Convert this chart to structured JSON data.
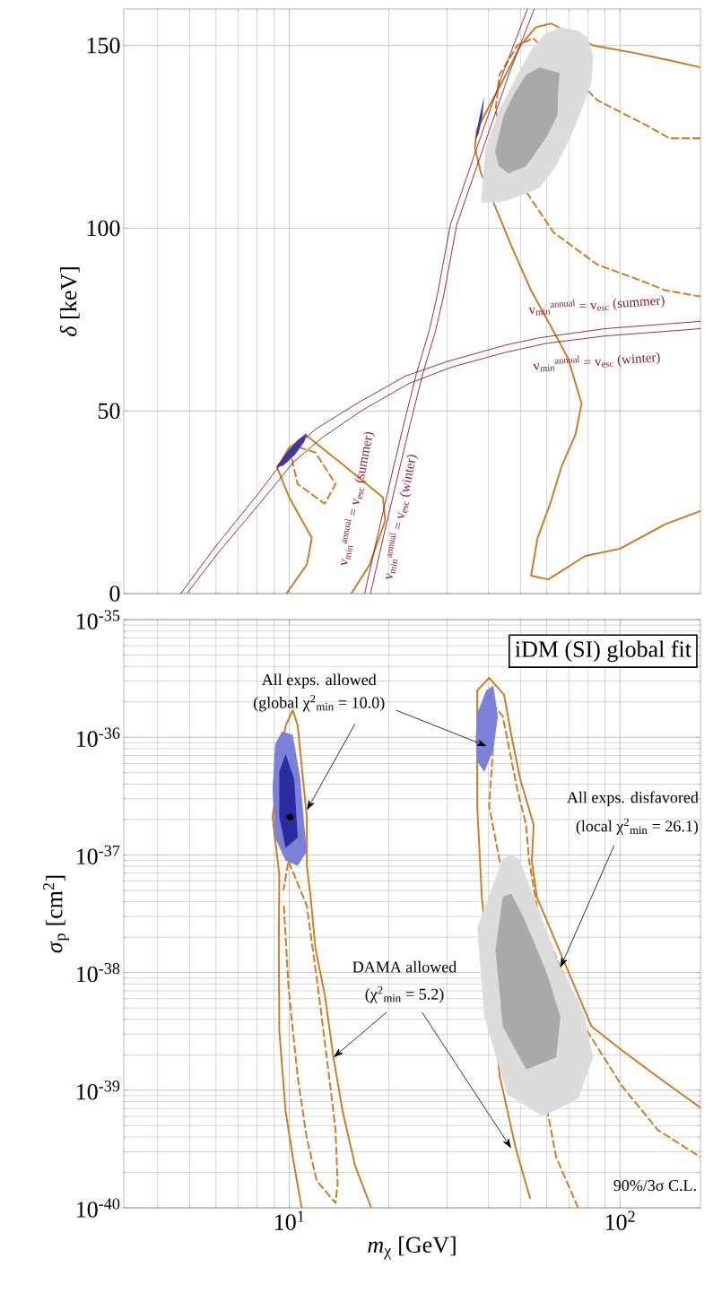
{
  "chart_data": [
    {
      "type": "line",
      "ylabel": "*δ* [keV]",
      "log": "x",
      "grid": true,
      "tick_labels": "y",
      "xlim": [
        3.16,
        175
      ],
      "ylim": [
        0,
        160
      ],
      "yticks": [
        0,
        50,
        100,
        150
      ],
      "series": [
        {
          "color": "#d0781e",
          "line_style": "dashed",
          "x": [
            10,
            10.6,
            12.8,
            13.8,
            12,
            10.3
          ],
          "values": [
            39.8,
            30,
            24.6,
            30,
            38.6,
            40.5
          ]
        },
        {
          "color": "#d0781e",
          "line_style": "dashed",
          "x": [
            175,
            141,
            121,
            85.5,
            54.6,
            48.9,
            43.2,
            42,
            52,
            63,
            85.5,
            113,
            137,
            175
          ],
          "values": [
            124.6,
            124.6,
            128,
            135,
            152,
            150,
            142,
            132,
            110,
            98.8,
            90,
            86,
            83,
            81.3
          ]
        },
        {
          "color": "#d0781e",
          "line_style": "solid",
          "x": [
            175,
            140,
            110,
            83,
            62,
            55.6,
            50,
            44,
            40,
            36.9,
            36.4,
            38,
            41.9,
            47,
            53.8,
            63,
            69.6,
            76.5,
            73.3,
            66.6,
            61.7,
            56.3,
            53.8,
            60.7,
            78.5,
            100,
            137,
            175
          ],
          "values": [
            144,
            146,
            148,
            150,
            156,
            155,
            150,
            140,
            133,
            127,
            122,
            115,
            106,
            95,
            83,
            71.7,
            64.4,
            52,
            43.5,
            34.9,
            25,
            15.2,
            4.9,
            3.9,
            10.3,
            12.3,
            19,
            22.6
          ]
        },
        {
          "color": "#d0781e",
          "line_style": "solid",
          "x": [
            9.8,
            11.3,
            11.7,
            10,
            9.2,
            10,
            11.3,
            14.7,
            19.2,
            19.5,
            17.5,
            15.4
          ],
          "values": [
            0,
            7.9,
            15.2,
            26.3,
            34.4,
            40,
            43.2,
            34.9,
            26.3,
            20,
            7.9,
            0
          ]
        },
        {
          "type": "area",
          "color": "#dcdcdc",
          "x": [
            38,
            38.5,
            39.3,
            43,
            48.9,
            54,
            59,
            66,
            75,
            80,
            83,
            82,
            77,
            71,
            64,
            57,
            50.4,
            45,
            41.9,
            38
          ],
          "values": [
            107,
            114,
            122,
            132,
            142,
            149,
            153,
            155,
            154,
            152,
            147,
            140,
            133,
            125,
            117,
            111,
            109,
            107.5,
            107,
            107
          ]
        },
        {
          "type": "area",
          "color": "#a9a9a9",
          "x": [
            41.9,
            44.5,
            48,
            52,
            57,
            65.6,
            65,
            64.7,
            60,
            52,
            46,
            43,
            41.9
          ],
          "values": [
            121,
            131,
            137,
            142,
            144,
            142.5,
            137,
            131,
            125,
            117,
            115,
            117,
            121
          ]
        },
        {
          "type": "area",
          "color": "#3a3aa8",
          "x": [
            9.1,
            9.8,
            10.6,
            11.3,
            11.1,
            10.4,
            9.6,
            9.1
          ],
          "values": [
            34.5,
            38.5,
            42,
            44,
            41.5,
            38,
            35,
            34.5
          ]
        },
        {
          "type": "area",
          "color": "#3a3aa8",
          "x": [
            36.5,
            37.5,
            38.8,
            38.4,
            37.4,
            36.5
          ],
          "values": [
            124,
            130,
            136,
            131,
            126,
            124
          ]
        },
        {
          "color": "#8b1c2c",
          "line_style": "solid",
          "name": "v$_{min}$$^{annual}$ = v$_{esc}$ (summer)",
          "x": [
            4.7,
            6,
            8,
            10,
            12,
            16,
            22.4,
            30,
            45,
            57,
            90,
            175
          ],
          "values": [
            0,
            13,
            27,
            38.5,
            45,
            52,
            59.5,
            63.5,
            68,
            70,
            72.5,
            74.5
          ]
        },
        {
          "color": "#8b1c2c",
          "line_style": "solid",
          "name": "v$_{min}$$^{annual}$ = v$_{esc}$ (winter)",
          "x": [
            4.9,
            6.2,
            8.2,
            10.3,
            12.5,
            16.5,
            23,
            31,
            45,
            60,
            90,
            175
          ],
          "values": [
            0,
            12,
            25,
            36,
            42.5,
            50,
            57.5,
            62,
            66,
            68.5,
            70.5,
            72.5
          ]
        },
        {
          "color": "#8b1c2c",
          "line_style": "solid",
          "name": "v$_{min}$$^{annual}$ = v$_{esc}$ (summer)",
          "x": [
            16.9,
            18.4,
            20.1,
            22,
            24.2,
            26.5,
            28,
            30.7,
            36.9,
            44.5,
            52.5
          ],
          "values": [
            0,
            15,
            30,
            45,
            60,
            72,
            81.6,
            101,
            122,
            143,
            160
          ]
        },
        {
          "color": "#8b1c2c",
          "line_style": "solid",
          "name": "v$_{min}$$^{annual}$ = v$_{esc}$ (winter)",
          "x": [
            17.6,
            19.2,
            21,
            23,
            25.3,
            27.7,
            29.3,
            32.1,
            38.6,
            46.5,
            55
          ],
          "values": [
            0,
            15,
            30,
            45,
            60,
            72,
            81.6,
            101,
            122,
            143,
            160
          ]
        }
      ]
    },
    {
      "type": "line",
      "xlabel": "*m*$_{χ}$ [GeV]",
      "ylabel": "*σ*$_{p}$ [cm$^{2}$]",
      "log": "xy",
      "grid": true,
      "xlim": [
        3.16,
        175
      ],
      "ylim": [
        1e-40,
        1e-35
      ],
      "xticks": [
        {
          "value": 10,
          "label": "10$^{1}$"
        },
        {
          "value": 100,
          "label": "10$^{2}$"
        }
      ],
      "yticks": [
        {
          "value": 1e-40,
          "label": "10$^{-40}$"
        },
        {
          "value": 1e-39,
          "label": "10$^{-39}$"
        },
        {
          "value": 1e-38,
          "label": "10$^{-38}$"
        },
        {
          "value": 1e-37,
          "label": "10$^{-37}$"
        },
        {
          "value": 1e-36,
          "label": "10$^{-36}$"
        },
        {
          "value": 1e-35,
          "label": "10$^{-35}$"
        }
      ],
      "annotations": [
        "iDM (SI) global fit",
        "All exps. allowed",
        {
          "text": "(global χ$^{2}$$_{min}$ = 10.0)",
          "x": 11.3,
          "y": 2.4e-37
        },
        "All exps. disfavored",
        {
          "text": "(local χ$^{2}$$_{min}$ = 26.1)",
          "x": 66.0,
          "y": 1.1e-38
        },
        "DAMA allowed",
        {
          "text": "(χ$^{2}$$_{min}$ = 5.2)",
          "x": 13.6,
          "y": 1.9e-39
        },
        "90%/3σ C.L."
      ],
      "series": [
        {
          "color": "#d0781e",
          "line_style": "dashed",
          "x": [
            9.63,
            9.94,
            10.6,
            11.3,
            12.1,
            13.8,
            14.0,
            13.8,
            13.2,
            12.2,
            11.3,
            9.94,
            9.6
          ],
          "values": [
            3.7e-38,
            7.6e-39,
            1.3e-39,
            3.9e-40,
            1.7e-40,
            1.1e-40,
            1.6e-40,
            4.6e-40,
            1.3e-39,
            7.6e-39,
            3.7e-38,
            8.9e-38,
            5e-38
          ]
        },
        {
          "color": "#d0781e",
          "line_style": "dashed",
          "x": [
            74.7,
            64.1,
            40.2,
            42.1,
            44.2,
            48.9,
            52,
            53.1,
            56.6,
            79.5,
            101,
            130,
            175
          ],
          "values": [
            1e-40,
            2.7e-40,
            2.6e-37,
            1.8e-36,
            1.5e-36,
            3.6e-37,
            1.8e-37,
            8.9e-38,
            3.1e-38,
            3.2e-39,
            1.1e-39,
            4.6e-40,
            2.7e-40
          ]
        },
        {
          "color": "#d0781e",
          "line_style": "solid",
          "x": [
            10.9,
            10.25,
            9.75,
            9.33,
            9.3,
            9.33,
            8.9,
            9.75,
            10.25,
            10.6,
            11.3,
            11.3,
            11.6,
            12.0,
            12.8,
            13.6,
            14.5,
            15.8,
            17.7
          ],
          "values": [
            1e-40,
            2.7e-40,
            6.6e-40,
            3.2e-39,
            1.8e-38,
            6.8e-38,
            2.1e-37,
            1.26e-36,
            1.7e-36,
            1.26e-36,
            2.1e-37,
            8.1e-38,
            4.4e-38,
            1.6e-38,
            6.5e-39,
            1.9e-39,
            6.6e-40,
            2.3e-40,
            1e-40
          ]
        },
        {
          "color": "#d0781e",
          "line_style": "solid",
          "x": [
            53.5,
            48.4,
            43.3,
            38.2,
            37,
            37,
            38.9,
            40.2,
            44.6,
            46.9,
            49.9,
            54.8,
            54.1,
            56,
            81.9,
            101,
            130,
            175
          ],
          "values": [
            1.2e-40,
            3.2e-40,
            1.3e-39,
            4.4e-38,
            2.6e-37,
            2.5e-36,
            2.9e-36,
            3.2e-36,
            2.3e-36,
            1.05e-36,
            4.4e-37,
            1.8e-37,
            8.9e-38,
            4.4e-38,
            3.5e-39,
            2.2e-39,
            1.3e-39,
            7.1e-40
          ]
        },
        {
          "type": "area",
          "color": "#dcdcdc",
          "x": [
            44.2,
            37,
            38.9,
            45.5,
            58.3,
            74.7,
            82.9,
            77.2,
            66.0,
            54.8,
            49.9,
            46.9,
            44.2
          ],
          "values": [
            9.3e-38,
            2.4e-38,
            4.2e-39,
            9.3e-40,
            6e-40,
            8.5e-40,
            1.9e-39,
            4.9e-39,
            1.1e-38,
            4.4e-38,
            8.9e-38,
            1.02e-37,
            9.3e-38
          ]
        },
        {
          "type": "area",
          "color": "#a9a9a9",
          "x": [
            44.2,
            42.0,
            44.2,
            52,
            64.1,
            66,
            60.0,
            51.5,
            46.9,
            44.2
          ],
          "values": [
            4.4e-38,
            1.55e-38,
            3.5e-39,
            1.5e-39,
            1.9e-39,
            4.2e-39,
            1e-38,
            2.8e-38,
            4.7e-38,
            4.4e-38
          ]
        },
        {
          "type": "area",
          "color": "#7c80d8",
          "x": [
            9.06,
            9.5,
            10.25,
            10.8,
            11.1,
            11.3,
            10.6,
            9.75,
            9.06,
            8.9,
            9.06
          ],
          "values": [
            8.7e-37,
            1.12e-36,
            1.05e-36,
            4.4e-37,
            1.8e-37,
            1.07e-37,
            8.1e-38,
            8.9e-38,
            1.4e-37,
            3.6e-37,
            8.7e-37
          ]
        },
        {
          "type": "area",
          "color": "#2b2ba0",
          "x": [
            9.33,
            9.75,
            10.35,
            10.6,
            9.75,
            9.33,
            9.33
          ],
          "values": [
            5.1e-37,
            7.2e-37,
            4.4e-37,
            1.4e-37,
            1.15e-37,
            2.1e-37,
            5.1e-37
          ]
        },
        {
          "type": "area",
          "color": "#7c80d8",
          "x": [
            36.6,
            37,
            39.4,
            41.4,
            42.7,
            41.4,
            38.9,
            37,
            36.6
          ],
          "values": [
            9.5e-37,
            1.6e-36,
            2.5e-36,
            2.75e-36,
            1.5e-36,
            7.9e-37,
            5.1e-37,
            6.2e-37,
            9.5e-37
          ]
        },
        {
          "type": "scatter",
          "color": "#000000",
          "marker": "circle",
          "x": [
            10.05
          ],
          "values": [
            2.1e-37
          ]
        }
      ]
    }
  ]
}
